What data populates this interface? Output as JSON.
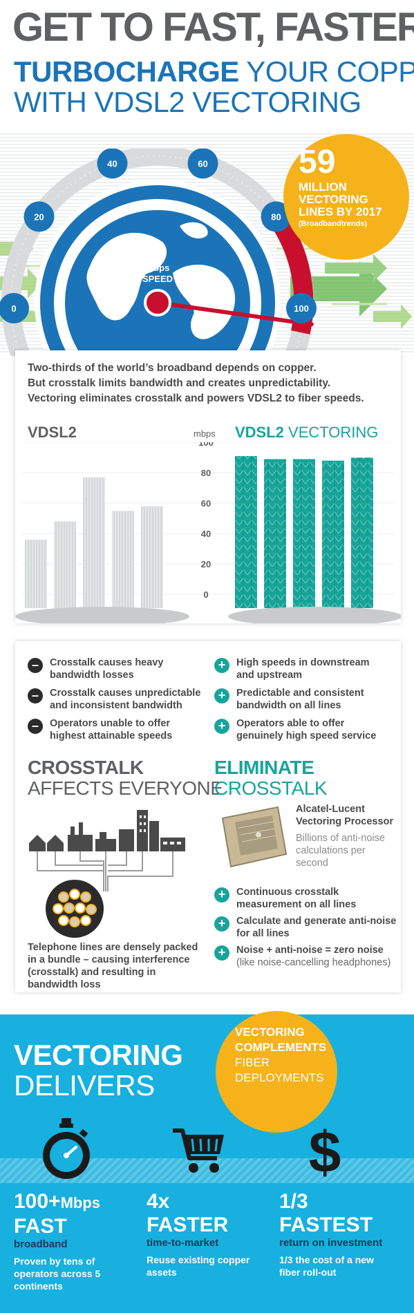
{
  "header": {
    "title": "GET TO FAST, FASTER",
    "sub_bold": "TURBOCHARGE",
    "sub_rest": " YOUR COPPER",
    "sub_line2": "WITH VDSL2 VECTORING"
  },
  "gauge": {
    "unit_line1": "mbps",
    "unit_line2": "SPEED",
    "ticks": [
      "0",
      "20",
      "40",
      "60",
      "80",
      "100"
    ],
    "needle_value": 100
  },
  "stat_bubble": {
    "number": "59",
    "line1": "MILLION",
    "line2": "VECTORING",
    "line3": "LINES BY 2017",
    "source": "(Broadbandtrends)"
  },
  "intro": {
    "line1": "Two-thirds of the world’s broadband depends on copper.",
    "line2": "But crosstalk limits bandwidth and creates unpredictability.",
    "line3": "Vectoring eliminates crosstalk and powers VDSL2 to fiber speeds."
  },
  "comparison": {
    "left_title": "VDSL2",
    "unit": "mbps",
    "right_title_bold": "VDSL2",
    "right_title_rest": " VECTORING",
    "axis_ticks": [
      "100",
      "80",
      "60",
      "40",
      "20",
      "0"
    ]
  },
  "chart_data": {
    "type": "bar",
    "title": "",
    "ylabel": "mbps",
    "ylim": [
      0,
      100
    ],
    "series": [
      {
        "name": "VDSL2",
        "values": [
          45,
          57,
          86,
          64,
          67
        ]
      },
      {
        "name": "VDSL2 VECTORING",
        "values": [
          100,
          98,
          98,
          97,
          99
        ]
      }
    ]
  },
  "cons": [
    {
      "line1": "Crosstalk causes heavy",
      "line2": "bandwidth losses"
    },
    {
      "line1": "Crosstalk causes unpredictable",
      "line2": "and inconsistent bandwidth"
    },
    {
      "line1": "Operators unable to offer",
      "line2": "highest attainable speeds"
    }
  ],
  "pros": [
    {
      "line1": "High speeds in downstream",
      "line2": "and upstream"
    },
    {
      "line1": "Predictable and consistent",
      "line2": "bandwidth on all lines"
    },
    {
      "line1": "Operators able to offer",
      "line2": "genuinely high speed service"
    }
  ],
  "crosstalk": {
    "head1": "CROSSTALK",
    "head2": "AFFECTS EVERYONE",
    "desc_line1": "Telephone lines are densely packed",
    "desc_line2": "in a bundle – causing interference",
    "desc_line3": "(crosstalk) and resulting in",
    "desc_line4": "bandwidth loss"
  },
  "eliminate": {
    "head1": "ELIMINATE",
    "head2": "CROSSTALK",
    "proc_line1": "Alcatel-Lucent",
    "proc_line2": "Vectoring Processor",
    "proc_desc1": "Billions of anti-noise",
    "proc_desc2": "calculations per",
    "proc_desc3": "second",
    "points": [
      {
        "line1": "Continuous crosstalk",
        "line2": "measurement on all lines"
      },
      {
        "line1": "Calculate and generate anti-noise",
        "line2": "for all lines"
      },
      {
        "line1": "Noise + anti-noise = zero noise",
        "line2": "(like noise-cancelling headphones)"
      }
    ]
  },
  "delivers": {
    "head1": "VECTORING",
    "head2": "DELIVERS",
    "bubble_line1": "VECTORING",
    "bubble_line2": "COMPLEMENTS",
    "bubble_line3": "FIBER",
    "bubble_line4": "DEPLOYMENTS",
    "icons": [
      "stopwatch-icon",
      "shopping-cart-icon",
      "dollar-icon"
    ],
    "stats": [
      {
        "num": "100+",
        "num_small": "Mbps",
        "head": "FAST",
        "sub": "broadband",
        "desc1": "Proven by tens of",
        "desc2": "operators across 5",
        "desc3": "continents"
      },
      {
        "num": "4x",
        "num_small": "",
        "head": "FASTER",
        "sub": "time-to-market",
        "desc1": "Reuse existing copper",
        "desc2": "assets",
        "desc3": ""
      },
      {
        "num": "1/3",
        "num_small": "",
        "head": "FASTEST",
        "sub": "return on investment",
        "desc1": "1/3 the cost of a new",
        "desc2": "fiber roll-out",
        "desc3": ""
      }
    ]
  },
  "colors": {
    "blue": "#1b74b8",
    "teal": "#17a59a",
    "yellow": "#f5b21a",
    "gray": "#5f6062",
    "cyan": "#17b0df",
    "red": "#c8102e"
  }
}
